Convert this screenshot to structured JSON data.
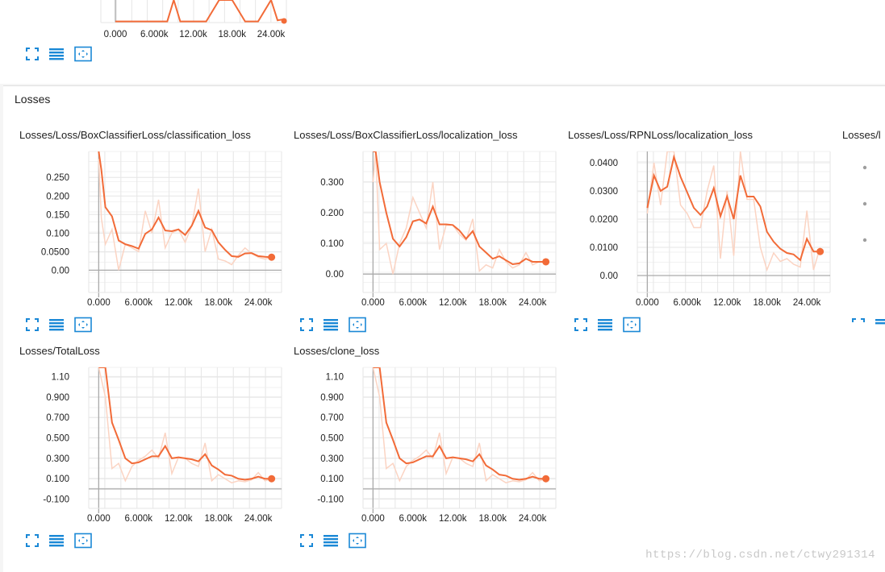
{
  "section": {
    "title": "Losses"
  },
  "top_chart": {
    "x_ticks": [
      "0.000",
      "6.000k",
      "12.00k",
      "18.00k",
      "24.00k"
    ]
  },
  "colors": {
    "smoothed": "#f26b38",
    "raw": "#fbd4c3",
    "grid": "#e6e6e6",
    "axis": "#aaaaaa",
    "icon": "#1a88d6"
  },
  "icons": [
    "expand-icon",
    "list-icon",
    "fit-domain-icon"
  ],
  "watermark": "https://blog.csdn.net/ctwy291314",
  "cards": [
    {
      "title": "Losses/Loss/BoxClassifierLoss/classification_loss"
    },
    {
      "title": "Losses/Loss/BoxClassifierLoss/localization_loss"
    },
    {
      "title": "Losses/Loss/RPNLoss/localization_loss"
    },
    {
      "title": "Losses/l"
    },
    {
      "title": "Losses/TotalLoss"
    },
    {
      "title": "Losses/clone_loss"
    }
  ],
  "chart_data": [
    {
      "type": "line",
      "title": "Losses/Loss/BoxClassifierLoss/classification_loss",
      "x_ticks": [
        "0.000",
        "6.000k",
        "12.00k",
        "18.00k",
        "24.00k"
      ],
      "y_ticks": [
        "0.00",
        "0.0500",
        "0.100",
        "0.150",
        "0.200",
        "0.250"
      ],
      "xlim": [
        -1500,
        27500
      ],
      "ylim": [
        -0.06,
        0.32
      ],
      "x": [
        0,
        400,
        1000,
        2000,
        3000,
        4000,
        5000,
        6000,
        7000,
        8000,
        9000,
        10000,
        11000,
        12000,
        13000,
        14000,
        15000,
        16000,
        17000,
        18000,
        19000,
        20000,
        21000,
        22000,
        23000,
        24000,
        25000,
        26000
      ],
      "series": [
        {
          "values": [
            0.32,
            0.27,
            0.17,
            0.145,
            0.08,
            0.07,
            0.065,
            0.058,
            0.098,
            0.11,
            0.142,
            0.107,
            0.105,
            0.11,
            0.095,
            0.12,
            0.16,
            0.115,
            0.108,
            0.075,
            0.055,
            0.038,
            0.036,
            0.045,
            0.046,
            0.038,
            0.036,
            0.035
          ]
        },
        {
          "values": [
            0.3,
            0.14,
            0.07,
            0.11,
            0.0,
            0.07,
            0.06,
            0.05,
            0.16,
            0.1,
            0.19,
            0.06,
            0.1,
            0.11,
            0.075,
            0.12,
            0.22,
            0.05,
            0.11,
            0.03,
            0.025,
            0.015,
            0.04,
            0.06,
            0.045,
            0.035,
            0.03,
            0.035
          ]
        }
      ]
    },
    {
      "type": "line",
      "title": "Losses/Loss/BoxClassifierLoss/localization_loss",
      "x_ticks": [
        "0.000",
        "6.000k",
        "12.00k",
        "18.00k",
        "24.00k"
      ],
      "y_ticks": [
        "0.00",
        "0.100",
        "0.200",
        "0.300"
      ],
      "xlim": [
        -1500,
        27500
      ],
      "ylim": [
        -0.06,
        0.4
      ],
      "x": [
        0,
        400,
        1000,
        2000,
        3000,
        4000,
        5000,
        6000,
        7000,
        8000,
        9000,
        10000,
        11000,
        12000,
        13000,
        14000,
        15000,
        16000,
        17000,
        18000,
        19000,
        20000,
        21000,
        22000,
        23000,
        24000,
        25000,
        26000
      ],
      "series": [
        {
          "values": [
            0.4,
            0.4,
            0.3,
            0.2,
            0.115,
            0.09,
            0.12,
            0.172,
            0.178,
            0.165,
            0.22,
            0.162,
            0.162,
            0.16,
            0.142,
            0.115,
            0.14,
            0.09,
            0.07,
            0.05,
            0.058,
            0.045,
            0.032,
            0.035,
            0.05,
            0.04,
            0.04,
            0.04
          ]
        },
        {
          "values": [
            0.3,
            0.4,
            0.08,
            0.1,
            0.0,
            0.1,
            0.15,
            0.25,
            0.2,
            0.15,
            0.3,
            0.08,
            0.16,
            0.16,
            0.13,
            0.11,
            0.18,
            0.01,
            0.03,
            0.02,
            0.08,
            0.04,
            0.02,
            0.03,
            0.07,
            0.03,
            0.04,
            0.04
          ]
        }
      ]
    },
    {
      "type": "line",
      "title": "Losses/Loss/RPNLoss/localization_loss",
      "x_ticks": [
        "0.000",
        "6.000k",
        "12.00k",
        "18.00k",
        "24.00k"
      ],
      "y_ticks": [
        "0.00",
        "0.0100",
        "0.0200",
        "0.0300",
        "0.0400"
      ],
      "xlim": [
        -1500,
        27500
      ],
      "ylim": [
        -0.006,
        0.044
      ],
      "x": [
        0,
        1000,
        2000,
        3000,
        4000,
        5000,
        6000,
        7000,
        8000,
        9000,
        10000,
        11000,
        12000,
        13000,
        14000,
        15000,
        16000,
        17000,
        18000,
        19000,
        20000,
        21000,
        22000,
        23000,
        24000,
        25000,
        26000
      ],
      "series": [
        {
          "values": [
            0.024,
            0.0355,
            0.03,
            0.0315,
            0.042,
            0.035,
            0.0295,
            0.024,
            0.0215,
            0.0245,
            0.031,
            0.021,
            0.028,
            0.02,
            0.0355,
            0.028,
            0.028,
            0.0245,
            0.0155,
            0.012,
            0.0095,
            0.008,
            0.0075,
            0.0055,
            0.013,
            0.0085,
            0.0085
          ]
        },
        {
          "values": [
            0.022,
            0.04,
            0.025,
            0.044,
            0.044,
            0.025,
            0.022,
            0.017,
            0.017,
            0.03,
            0.039,
            0.006,
            0.03,
            0.007,
            0.044,
            0.027,
            0.027,
            0.01,
            0.002,
            0.008,
            0.005,
            0.006,
            0.004,
            0.003,
            0.023,
            0.002,
            0.01
          ]
        }
      ]
    },
    {
      "type": "line",
      "title": "Losses/TotalLoss",
      "x_ticks": [
        "0.000",
        "6.000k",
        "12.00k",
        "18.00k",
        "24.00k"
      ],
      "y_ticks": [
        "-0.100",
        "0.100",
        "0.300",
        "0.500",
        "0.700",
        "0.900",
        "1.10"
      ],
      "xlim": [
        -1500,
        27500
      ],
      "ylim": [
        -0.19,
        1.19
      ],
      "x": [
        0,
        1000,
        2000,
        3000,
        4000,
        5000,
        6000,
        7000,
        8000,
        9000,
        10000,
        11000,
        12000,
        13000,
        14000,
        15000,
        16000,
        17000,
        18000,
        19000,
        20000,
        21000,
        22000,
        23000,
        24000,
        25000,
        26000
      ],
      "series": [
        {
          "values": [
            1.19,
            1.19,
            0.65,
            0.48,
            0.3,
            0.25,
            0.26,
            0.29,
            0.32,
            0.32,
            0.42,
            0.3,
            0.31,
            0.3,
            0.29,
            0.27,
            0.34,
            0.23,
            0.19,
            0.14,
            0.13,
            0.1,
            0.09,
            0.1,
            0.12,
            0.1,
            0.1
          ]
        },
        {
          "values": [
            1.19,
            0.9,
            0.2,
            0.25,
            0.08,
            0.22,
            0.28,
            0.32,
            0.38,
            0.3,
            0.55,
            0.15,
            0.31,
            0.3,
            0.25,
            0.22,
            0.45,
            0.08,
            0.14,
            0.1,
            0.06,
            0.08,
            0.07,
            0.09,
            0.16,
            0.08,
            0.1
          ]
        }
      ]
    },
    {
      "type": "line",
      "title": "Losses/clone_loss",
      "x_ticks": [
        "0.000",
        "6.000k",
        "12.00k",
        "18.00k",
        "24.00k"
      ],
      "y_ticks": [
        "-0.100",
        "0.100",
        "0.300",
        "0.500",
        "0.700",
        "0.900",
        "1.10"
      ],
      "xlim": [
        -1500,
        27500
      ],
      "ylim": [
        -0.19,
        1.19
      ],
      "x": [
        0,
        1000,
        2000,
        3000,
        4000,
        5000,
        6000,
        7000,
        8000,
        9000,
        10000,
        11000,
        12000,
        13000,
        14000,
        15000,
        16000,
        17000,
        18000,
        19000,
        20000,
        21000,
        22000,
        23000,
        24000,
        25000,
        26000
      ],
      "series": [
        {
          "values": [
            1.19,
            1.19,
            0.65,
            0.48,
            0.3,
            0.25,
            0.26,
            0.29,
            0.32,
            0.32,
            0.42,
            0.3,
            0.31,
            0.3,
            0.29,
            0.27,
            0.34,
            0.23,
            0.19,
            0.14,
            0.13,
            0.1,
            0.09,
            0.1,
            0.12,
            0.1,
            0.1
          ]
        },
        {
          "values": [
            1.19,
            0.9,
            0.2,
            0.25,
            0.08,
            0.22,
            0.28,
            0.32,
            0.38,
            0.3,
            0.55,
            0.15,
            0.31,
            0.3,
            0.25,
            0.22,
            0.45,
            0.08,
            0.14,
            0.1,
            0.06,
            0.08,
            0.07,
            0.09,
            0.16,
            0.08,
            0.1
          ]
        }
      ]
    },
    {
      "type": "line",
      "title": "",
      "x_ticks": [
        "0.000",
        "6.000k",
        "12.00k",
        "18.00k",
        "24.00k"
      ],
      "xlim": [
        -1500,
        27500
      ],
      "ylim": [
        0,
        1
      ],
      "x": [
        0,
        2000,
        4000,
        6000,
        8000,
        9000,
        10000,
        12000,
        14000,
        16000,
        18000,
        20000,
        22000,
        24000,
        25000,
        26000
      ],
      "series": [
        {
          "values": [
            0.05,
            0.05,
            0.05,
            0.05,
            0.05,
            1.0,
            0.05,
            0.05,
            0.05,
            1.0,
            1.0,
            0.05,
            0.05,
            1.0,
            0.1,
            0.15
          ]
        }
      ]
    }
  ]
}
